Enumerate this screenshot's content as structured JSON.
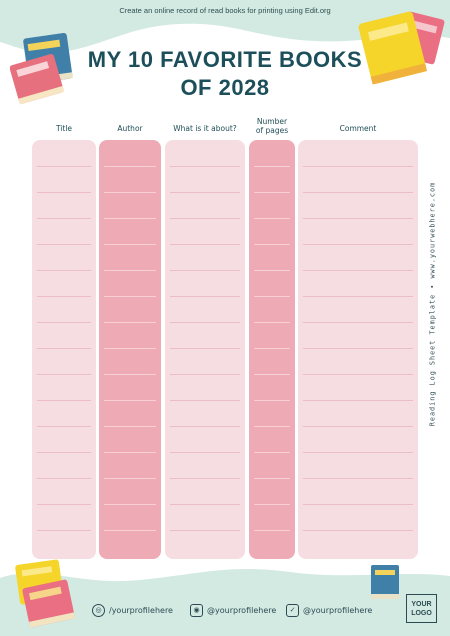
{
  "header": {
    "banner": "Create an online record of read books for printing using Edit.org",
    "title_line1": "MY 10 FAVORITE BOOKS",
    "title_line2": "OF 2028"
  },
  "columns": [
    {
      "label": "Title"
    },
    {
      "label": "Author"
    },
    {
      "label": "What is it about?"
    },
    {
      "label_line1": "Number",
      "label_line2": "of pages"
    },
    {
      "label": "Comment"
    }
  ],
  "side_text": "Reading Log Sheet Template  •  www.yourwebhere.com",
  "footer": {
    "social": [
      {
        "icon": "globe-icon",
        "handle": "/yourprofilehere"
      },
      {
        "icon": "instagram-icon",
        "handle": "@yourprofilehere"
      },
      {
        "icon": "twitter-icon",
        "handle": "@yourprofilehere"
      }
    ],
    "logo_line1": "YOUR",
    "logo_line2": "LOGO"
  },
  "colors": {
    "mint": "#cfe8e1",
    "light_column": "#f5dde2",
    "dark_column": "#eeaab5",
    "title": "#1c4f5a"
  }
}
